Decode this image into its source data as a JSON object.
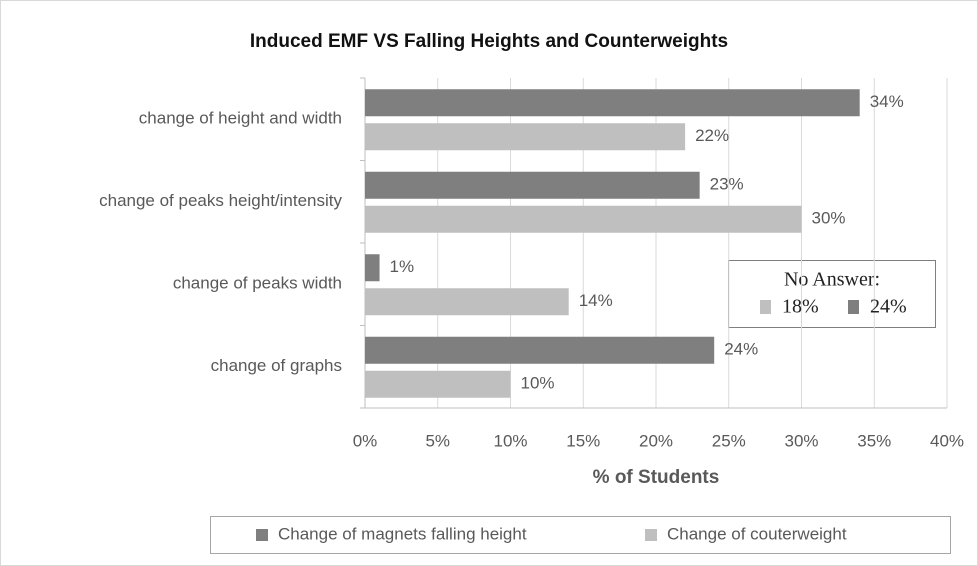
{
  "chart_data": {
    "type": "hbar",
    "title": "Induced EMF VS Falling Heights and Counterweights",
    "x_label": "% of Students",
    "categories": [
      "change of height and width",
      "change of peaks height/intensity",
      "change of peaks width",
      "change of graphs"
    ],
    "series": [
      {
        "name": "Change of magnets falling height",
        "color": "#7f7f7f",
        "values": [
          34,
          23,
          1,
          24
        ],
        "value_labels": [
          "34%",
          "23%",
          "1%",
          "24%"
        ]
      },
      {
        "name": "Change of couterweight",
        "color": "#bfbfbf",
        "values": [
          22,
          30,
          14,
          10
        ],
        "value_labels": [
          "22%",
          "30%",
          "14%",
          "10%"
        ]
      }
    ],
    "xlim": [
      0,
      40
    ],
    "xticks": [
      {
        "value": 0,
        "label": "0%"
      },
      {
        "value": 5,
        "label": "5%"
      },
      {
        "value": 10,
        "label": "10%"
      },
      {
        "value": 15,
        "label": "15%"
      },
      {
        "value": 20,
        "label": "20%"
      },
      {
        "value": 25,
        "label": "25%"
      },
      {
        "value": 30,
        "label": "30%"
      },
      {
        "value": 35,
        "label": "35%"
      },
      {
        "value": 40,
        "label": "40%"
      }
    ],
    "grid": true,
    "legend": "bottom",
    "annotation": {
      "text": "No Answer:",
      "items": [
        {
          "label": "18%",
          "color": "#bfbfbf"
        },
        {
          "label": "24%",
          "color": "#7f7f7f"
        }
      ]
    }
  }
}
